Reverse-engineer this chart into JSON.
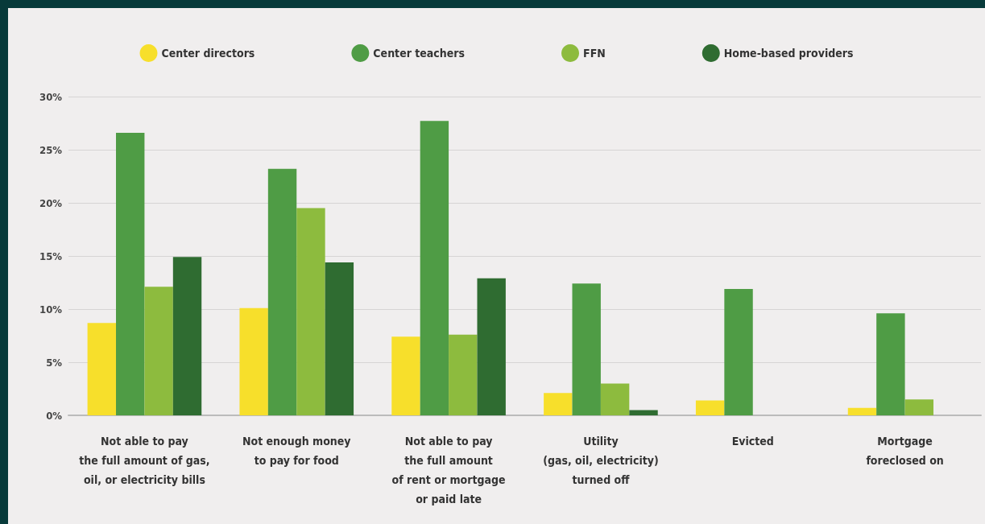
{
  "chart_data": {
    "type": "bar",
    "categories": [
      "Not able to pay\nthe full amount of gas,\noil, or electricity bills",
      "Not enough money\nto pay for food",
      "Not able to pay\nthe full amount\nof rent or mortgage\nor paid late",
      "Utility\n(gas, oil, electricity)\nturned off",
      "Evicted",
      "Mortgage\nforeclosed on"
    ],
    "series": [
      {
        "name": "Center directors",
        "color": "#f7df2b",
        "values": [
          8.7,
          10.1,
          7.4,
          2.1,
          1.4,
          0.7
        ]
      },
      {
        "name": "Center teachers",
        "color": "#4f9c45",
        "values": [
          26.6,
          23.2,
          27.7,
          12.4,
          11.9,
          9.6
        ]
      },
      {
        "name": "FFN",
        "color": "#8dbb3e",
        "values": [
          12.1,
          19.5,
          7.6,
          3.0,
          null,
          1.5
        ]
      },
      {
        "name": "Home-based providers",
        "color": "#2f6c31",
        "values": [
          14.9,
          14.4,
          12.9,
          0.5,
          null,
          null
        ]
      }
    ],
    "ylim": [
      0,
      30
    ],
    "yticks": [
      {
        "value": 0,
        "label": "0%"
      },
      {
        "value": 5,
        "label": "5%"
      },
      {
        "value": 10,
        "label": "10%"
      },
      {
        "value": 15,
        "label": "15%"
      },
      {
        "value": 20,
        "label": "20%"
      },
      {
        "value": 25,
        "label": "25%"
      },
      {
        "value": 30,
        "label": "30%"
      }
    ],
    "grid": "y",
    "legend": "top"
  }
}
